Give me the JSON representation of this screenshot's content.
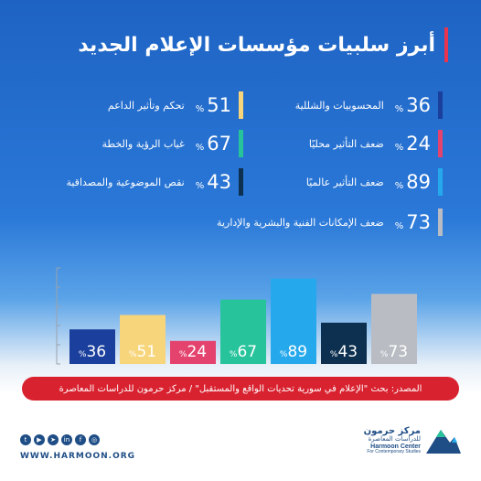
{
  "title": "أبرز سلبيات مؤسسات الإعلام الجديد",
  "percent_sign": "%",
  "legend": [
    {
      "label": "المحسوبيات والشللية",
      "value": "36",
      "color": "#1a3f9c"
    },
    {
      "label": "تحكم وتأثير الداعم",
      "value": "51",
      "color": "#f7d57a"
    },
    {
      "label": "ضعف التأثير محليًا",
      "value": "24",
      "color": "#e4436e"
    },
    {
      "label": "غياب الرؤية والخطة",
      "value": "67",
      "color": "#27c49c"
    },
    {
      "label": "ضعف التأثير عالميًا",
      "value": "89",
      "color": "#25a9ec"
    },
    {
      "label": "نقص الموضوعية والمصداقية",
      "value": "43",
      "color": "#0d3050"
    },
    {
      "label": "ضعف الإمكانات الفنية والبشرية والإدارية",
      "value": "73",
      "color": "#b9bcc2"
    }
  ],
  "chart_data": {
    "type": "bar",
    "categories": [
      "المحسوبيات والشللية",
      "تحكم وتأثير الداعم",
      "ضعف التأثير محليًا",
      "غياب الرؤية والخطة",
      "ضعف التأثير عالميًا",
      "نقص الموضوعية والمصداقية",
      "ضعف الإمكانات الفنية والبشرية والإدارية"
    ],
    "values": [
      36,
      51,
      24,
      67,
      89,
      43,
      73
    ],
    "colors": [
      "#1a3f9c",
      "#f7d57a",
      "#e4436e",
      "#27c49c",
      "#25a9ec",
      "#0d3050",
      "#b9bcc2"
    ],
    "ylim": [
      0,
      100
    ],
    "grid": false
  },
  "source": "المصدر: بحث \"الإعلام في سورية تحديات الواقع والمستقبل\" / مركز حرمون للدراسات المعاصرة",
  "footer": {
    "website": "WWW.HARMOON.ORG",
    "social_icons": [
      "twitter-icon",
      "youtube-icon",
      "telegram-icon",
      "linkedin-icon",
      "facebook-icon",
      "instagram-icon"
    ],
    "logo_ar": "مركز حرمون",
    "logo_ar_sub": "للدراسات المعاصرة",
    "logo_en": "Harmoon Center",
    "logo_en_sub": "For Contemporary Studies"
  }
}
